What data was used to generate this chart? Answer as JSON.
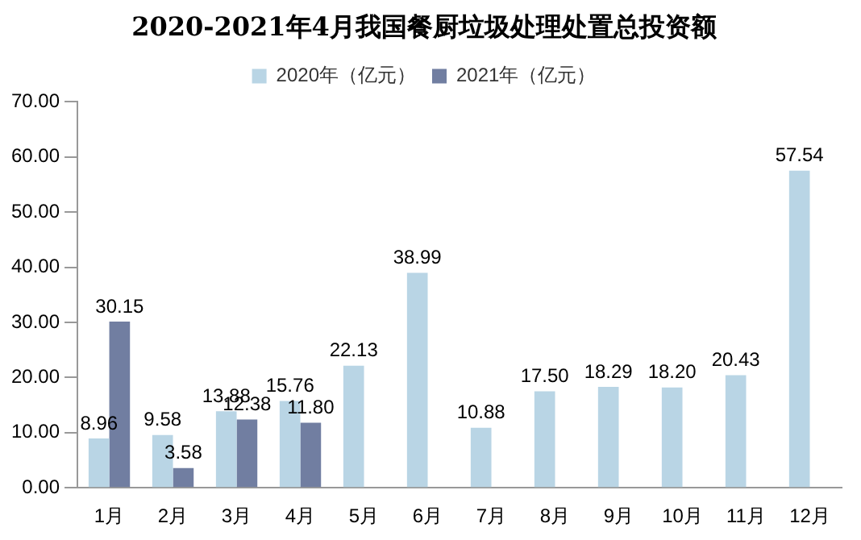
{
  "chart_data": {
    "type": "bar",
    "title": "2020-2021年4月我国餐厨垃圾处理处置总投资额",
    "categories": [
      "1月",
      "2月",
      "3月",
      "4月",
      "5月",
      "6月",
      "7月",
      "8月",
      "9月",
      "10月",
      "11月",
      "12月"
    ],
    "series": [
      {
        "name": "2020年（亿元）",
        "color": "#b9d5e5",
        "values": [
          8.96,
          9.58,
          13.88,
          15.76,
          22.13,
          38.99,
          10.88,
          17.5,
          18.29,
          18.2,
          20.43,
          57.54
        ],
        "value_labels": [
          "8.96",
          "9.58",
          "13.88",
          "15.76",
          "22.13",
          "38.99",
          "10.88",
          "17.50",
          "18.29",
          "18.20",
          "20.43",
          "57.54"
        ]
      },
      {
        "name": "2021年（亿元）",
        "color": "#717ea1",
        "values": [
          30.15,
          3.58,
          12.38,
          11.8,
          null,
          null,
          null,
          null,
          null,
          null,
          null,
          null
        ],
        "value_labels": [
          "30.15",
          "3.58",
          "12.38",
          "11.80",
          null,
          null,
          null,
          null,
          null,
          null,
          null,
          null
        ]
      }
    ],
    "ylim": [
      0,
      70
    ],
    "yticks": [
      {
        "value": 0,
        "label": "0.00"
      },
      {
        "value": 10,
        "label": "10.00"
      },
      {
        "value": 20,
        "label": "20.00"
      },
      {
        "value": 30,
        "label": "30.00"
      },
      {
        "value": 40,
        "label": "40.00"
      },
      {
        "value": 50,
        "label": "50.00"
      },
      {
        "value": 60,
        "label": "60.00"
      },
      {
        "value": 70,
        "label": "70.00"
      }
    ],
    "grid": false,
    "legend": "top"
  }
}
